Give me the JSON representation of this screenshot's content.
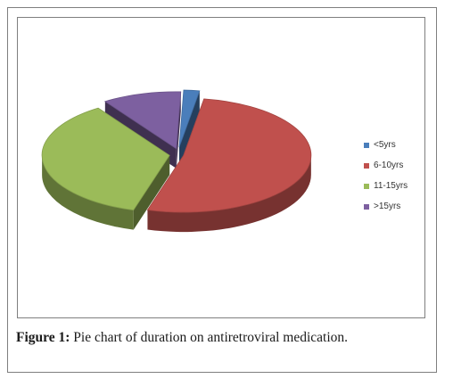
{
  "caption": {
    "label": "Figure 1:",
    "text": " Pie chart of duration on antiretroviral medication."
  },
  "chart_data": {
    "type": "pie",
    "style": "3d-exploded",
    "title": "",
    "legend_position": "right",
    "categories": [
      "<5yrs",
      "6-10yrs",
      "11-15yrs",
      ">15yrs"
    ],
    "values": [
      2,
      52,
      36,
      10
    ],
    "colors": [
      "#4a7ebb",
      "#c0504d",
      "#9bbb59",
      "#7d60a0"
    ]
  }
}
